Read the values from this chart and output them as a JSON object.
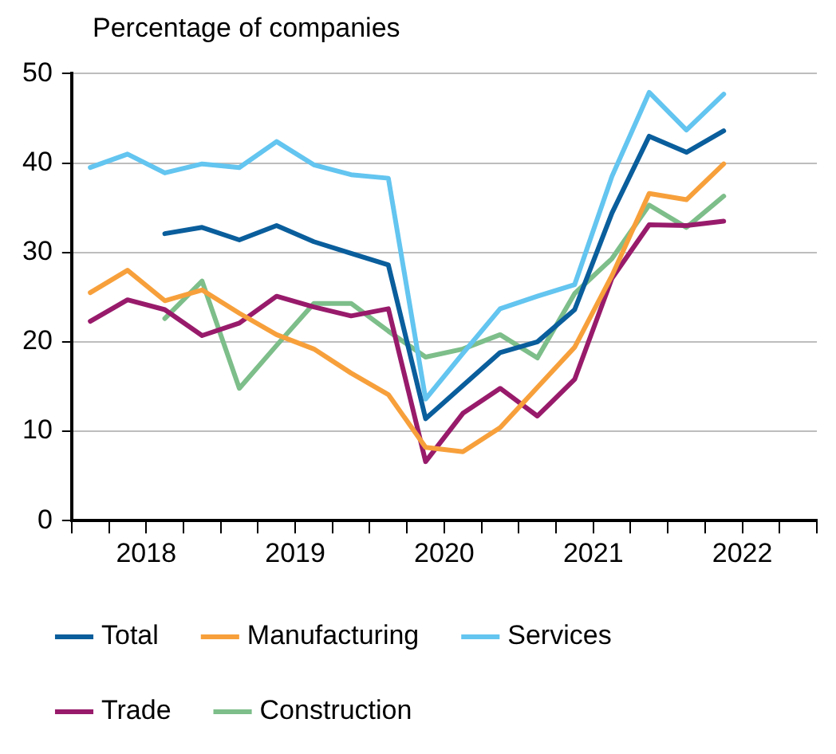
{
  "chart_data": {
    "type": "line",
    "ylabel": "Percentage of companies",
    "x": [
      2018.125,
      2018.375,
      2018.625,
      2018.875,
      2019.125,
      2019.375,
      2019.625,
      2019.875,
      2020.125,
      2020.375,
      2020.625,
      2020.875,
      2021.125,
      2021.375,
      2021.625,
      2021.875,
      2022.125,
      2022.375
    ],
    "series": [
      {
        "name": "Total",
        "color": "#0a5e9c",
        "values": [
          null,
          null,
          32.1,
          32.8,
          31.4,
          33.0,
          31.2,
          29.9,
          28.6,
          11.4,
          15.1,
          18.8,
          20.0,
          23.6,
          34.4,
          43.0,
          41.2,
          43.6
        ]
      },
      {
        "name": "Manufacturing",
        "color": "#f7a03b",
        "values": [
          25.5,
          28.0,
          24.6,
          25.8,
          23.2,
          20.8,
          19.2,
          16.5,
          14.1,
          8.2,
          7.7,
          10.4,
          14.9,
          19.4,
          27.4,
          36.6,
          35.9,
          39.9
        ]
      },
      {
        "name": "Services",
        "color": "#63c5f0",
        "values": [
          39.5,
          41.0,
          38.9,
          39.9,
          39.5,
          42.4,
          39.8,
          38.7,
          38.3,
          13.6,
          18.7,
          23.7,
          25.1,
          26.4,
          38.5,
          47.9,
          43.7,
          47.7
        ]
      },
      {
        "name": "Trade",
        "color": "#981b6b",
        "values": [
          22.3,
          24.7,
          23.6,
          20.7,
          22.1,
          25.1,
          23.9,
          22.9,
          23.7,
          6.6,
          12.0,
          14.8,
          11.7,
          15.8,
          27.1,
          33.1,
          33.0,
          33.5
        ]
      },
      {
        "name": "Construction",
        "color": "#7dbe8a",
        "values": [
          null,
          null,
          22.6,
          26.8,
          14.8,
          19.6,
          24.3,
          24.3,
          21.2,
          18.3,
          19.2,
          20.8,
          18.2,
          25.4,
          29.3,
          35.3,
          32.8,
          36.3
        ]
      }
    ],
    "xlim": [
      2018,
      2023
    ],
    "xticks": [
      {
        "value": 2018,
        "label": null
      },
      {
        "value": 2018.25,
        "label": null
      },
      {
        "value": 2018.5,
        "label": "2018"
      },
      {
        "value": 2018.75,
        "label": null
      },
      {
        "value": 2019,
        "label": null
      },
      {
        "value": 2019.25,
        "label": null
      },
      {
        "value": 2019.5,
        "label": "2019"
      },
      {
        "value": 2019.75,
        "label": null
      },
      {
        "value": 2020,
        "label": null
      },
      {
        "value": 2020.25,
        "label": null
      },
      {
        "value": 2020.5,
        "label": "2020"
      },
      {
        "value": 2020.75,
        "label": null
      },
      {
        "value": 2021,
        "label": null
      },
      {
        "value": 2021.25,
        "label": null
      },
      {
        "value": 2021.5,
        "label": "2021"
      },
      {
        "value": 2021.75,
        "label": null
      },
      {
        "value": 2022,
        "label": null
      },
      {
        "value": 2022.25,
        "label": null
      },
      {
        "value": 2022.5,
        "label": "2022"
      },
      {
        "value": 2022.75,
        "label": null
      },
      {
        "value": 2023,
        "label": null
      }
    ],
    "ylim": [
      0,
      50
    ],
    "yticks": [
      0,
      10,
      20,
      30,
      40,
      50
    ],
    "grid": "y",
    "legend": "bottom",
    "marker": "none",
    "line_style": "solid"
  }
}
